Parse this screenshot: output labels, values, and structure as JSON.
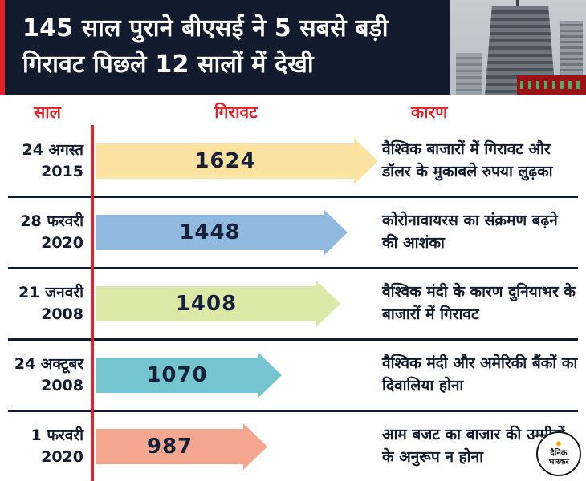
{
  "header": {
    "title_line1": "145 साल पुराने बीएसई ने 5 सबसे बड़ी",
    "title_line2": "गिरावट पिछले 12 सालों में देखी"
  },
  "columns": {
    "year": "साल",
    "fall": "गिरावट",
    "reason": "कारण"
  },
  "chart_data": {
    "type": "bar",
    "orientation": "horizontal",
    "title": "145 साल पुराने बीएसई ने 5 सबसे बड़ी गिरावट पिछले 12 सालों में देखी",
    "category_label": "साल",
    "value_label": "गिरावट",
    "annotation_label": "कारण",
    "categories": [
      "24 अगस्त 2015",
      "28 फरवरी 2020",
      "21 जनवरी 2008",
      "24 अक्टूबर 2008",
      "1 फरवरी 2020"
    ],
    "values": [
      1624,
      1448,
      1408,
      1070,
      987
    ],
    "bar_colors": [
      "#fbe2a0",
      "#8fb9de",
      "#dce8a6",
      "#74c5cf",
      "#f5a68e"
    ],
    "annotations": [
      "वैश्विक बाजारों में गिरावट और डॉलर के मुकाबले रुपया लुढ़का",
      "कोरोनावायरस का संक्रमण बढ़ने की आशंका",
      "वैश्विक मंदी के कारण दुनियाभर के बाजारों में गिरावट",
      "वैश्विक मंदी और अमेरिकी बैंकों का दिवालिया होना",
      "आम बजट का बाजार की उम्मीदों के अनुरूप न होना"
    ],
    "xlim": [
      0,
      1700
    ],
    "grid": false,
    "legend": false
  },
  "rows": [
    {
      "date_line1": "24 अगस्त",
      "date_line2": "2015",
      "reason": "वैश्विक बाजारों में गिरावट और डॉलर के मुकाबले रुपया लुढ़का"
    },
    {
      "date_line1": "28 फरवरी",
      "date_line2": "2020",
      "reason": "कोरोनावायरस का संक्रमण बढ़ने की आशंका"
    },
    {
      "date_line1": "21 जनवरी",
      "date_line2": "2008",
      "reason": "वैश्विक मंदी के कारण दुनियाभर के बाजारों में गिरावट"
    },
    {
      "date_line1": "24 अक्टूबर",
      "date_line2": "2008",
      "reason": "वैश्विक मंदी और अमेरिकी बैंकों का दिवालिया होना"
    },
    {
      "date_line1": "1 फरवरी",
      "date_line2": "2020",
      "reason": "आम बजट का बाजार की उम्मीदों के अनुरूप न होना"
    }
  ],
  "logo": {
    "sun": "✹",
    "line1": "दैनिक",
    "line2": "भास्कर"
  }
}
